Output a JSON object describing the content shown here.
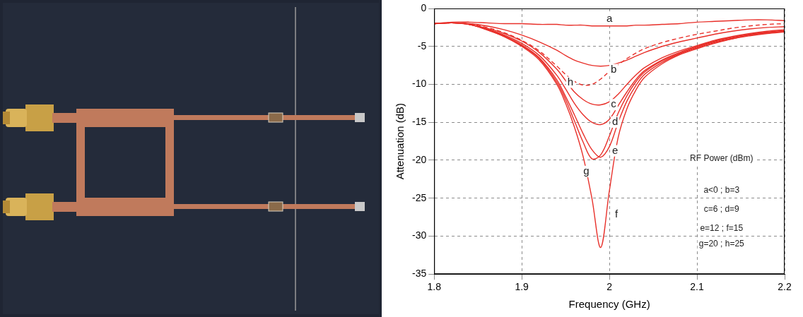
{
  "chart_data": {
    "type": "line",
    "x_label": "Frequency (GHz)",
    "y_label": "Attenuation (dB)",
    "x": [
      1.8,
      1.82,
      1.84,
      1.86,
      1.88,
      1.9,
      1.92,
      1.94,
      1.95,
      1.96,
      1.97,
      1.98,
      1.99,
      2.0,
      2.01,
      2.02,
      2.03,
      2.04,
      2.06,
      2.08,
      2.1,
      2.12,
      2.14,
      2.16,
      2.18,
      2.2
    ],
    "series": [
      {
        "name": "a",
        "color": "#e8302a",
        "line_style": "solid",
        "values": [
          -2.0,
          -1.8,
          -1.8,
          -1.9,
          -2.0,
          -2.0,
          -2.1,
          -2.1,
          -2.2,
          -2.2,
          -2.2,
          -2.3,
          -2.3,
          -2.3,
          -2.3,
          -2.3,
          -2.2,
          -2.2,
          -2.1,
          -2.0,
          -1.8,
          -1.7,
          -1.6,
          -1.5,
          -1.5,
          -1.6
        ]
      },
      {
        "name": "b",
        "color": "#e8302a",
        "line_style": "solid",
        "values": [
          -2.0,
          -1.9,
          -2.0,
          -2.3,
          -2.8,
          -3.5,
          -4.4,
          -5.5,
          -6.2,
          -6.8,
          -7.2,
          -7.5,
          -7.6,
          -7.5,
          -7.2,
          -6.8,
          -6.3,
          -5.8,
          -5.0,
          -4.4,
          -3.9,
          -3.4,
          -3.0,
          -2.7,
          -2.5,
          -2.4
        ]
      },
      {
        "name": "c",
        "color": "#e8302a",
        "line_style": "solid",
        "values": [
          -2.0,
          -1.9,
          -2.1,
          -2.6,
          -3.3,
          -4.3,
          -5.8,
          -8.0,
          -9.5,
          -11.0,
          -12.0,
          -12.6,
          -12.7,
          -12.3,
          -11.3,
          -10.0,
          -8.8,
          -7.8,
          -6.5,
          -5.6,
          -4.9,
          -4.2,
          -3.7,
          -3.3,
          -3.0,
          -2.8
        ]
      },
      {
        "name": "d",
        "color": "#e8302a",
        "line_style": "solid",
        "values": [
          -2.0,
          -1.9,
          -2.1,
          -2.7,
          -3.5,
          -4.6,
          -6.2,
          -8.8,
          -10.6,
          -12.5,
          -14.0,
          -15.0,
          -15.3,
          -14.6,
          -12.8,
          -11.0,
          -9.4,
          -8.2,
          -6.8,
          -5.8,
          -5.0,
          -4.3,
          -3.8,
          -3.4,
          -3.1,
          -2.9
        ]
      },
      {
        "name": "e",
        "color": "#e8302a",
        "line_style": "solid",
        "values": [
          -2.0,
          -1.9,
          -2.1,
          -2.7,
          -3.6,
          -4.8,
          -6.5,
          -9.4,
          -11.6,
          -14.0,
          -16.5,
          -18.6,
          -19.6,
          -18.2,
          -15.0,
          -12.2,
          -10.2,
          -8.7,
          -7.1,
          -6.0,
          -5.2,
          -4.5,
          -4.0,
          -3.5,
          -3.2,
          -3.0
        ]
      },
      {
        "name": "f",
        "color": "#e8302a",
        "line_style": "solid",
        "values": [
          -2.0,
          -1.9,
          -2.1,
          -2.8,
          -3.7,
          -5.0,
          -6.8,
          -10.0,
          -12.5,
          -15.6,
          -19.5,
          -25.0,
          -31.5,
          -24.0,
          -17.0,
          -13.2,
          -10.8,
          -9.1,
          -7.3,
          -6.1,
          -5.3,
          -4.6,
          -4.0,
          -3.6,
          -3.3,
          -3.1
        ]
      },
      {
        "name": "g",
        "color": "#e8302a",
        "line_style": "solid",
        "values": [
          -2.0,
          -1.9,
          -2.1,
          -2.8,
          -3.7,
          -4.9,
          -6.6,
          -9.7,
          -12.0,
          -14.8,
          -17.6,
          -19.8,
          -19.3,
          -16.8,
          -13.8,
          -11.5,
          -9.7,
          -8.4,
          -6.9,
          -5.9,
          -5.1,
          -4.4,
          -3.9,
          -3.5,
          -3.2,
          -3.0
        ]
      },
      {
        "name": "h",
        "color": "#e8302a",
        "line_style": "dashed",
        "values": [
          -2.0,
          -1.9,
          -2.0,
          -2.5,
          -3.2,
          -4.2,
          -5.6,
          -7.6,
          -8.7,
          -9.6,
          -10.1,
          -10.0,
          -9.3,
          -8.3,
          -7.4,
          -6.6,
          -5.9,
          -5.3,
          -4.5,
          -3.9,
          -3.4,
          -3.0,
          -2.6,
          -2.3,
          -2.1,
          -2.0
        ]
      }
    ],
    "xlim": [
      1.8,
      2.2
    ],
    "xticks": [
      1.8,
      1.9,
      2,
      2.1,
      2.2
    ],
    "ylim": [
      -35,
      0
    ],
    "yticks": [
      -35,
      -30,
      -25,
      -20,
      -15,
      -10,
      -5,
      0
    ],
    "grid": true,
    "marker": "none",
    "annotations": [
      "RF Power (dBm)",
      "a<0 ; b=3",
      "c=6 ; d=9",
      "e=12 ; f=15",
      "g=20 ; h=25"
    ]
  }
}
